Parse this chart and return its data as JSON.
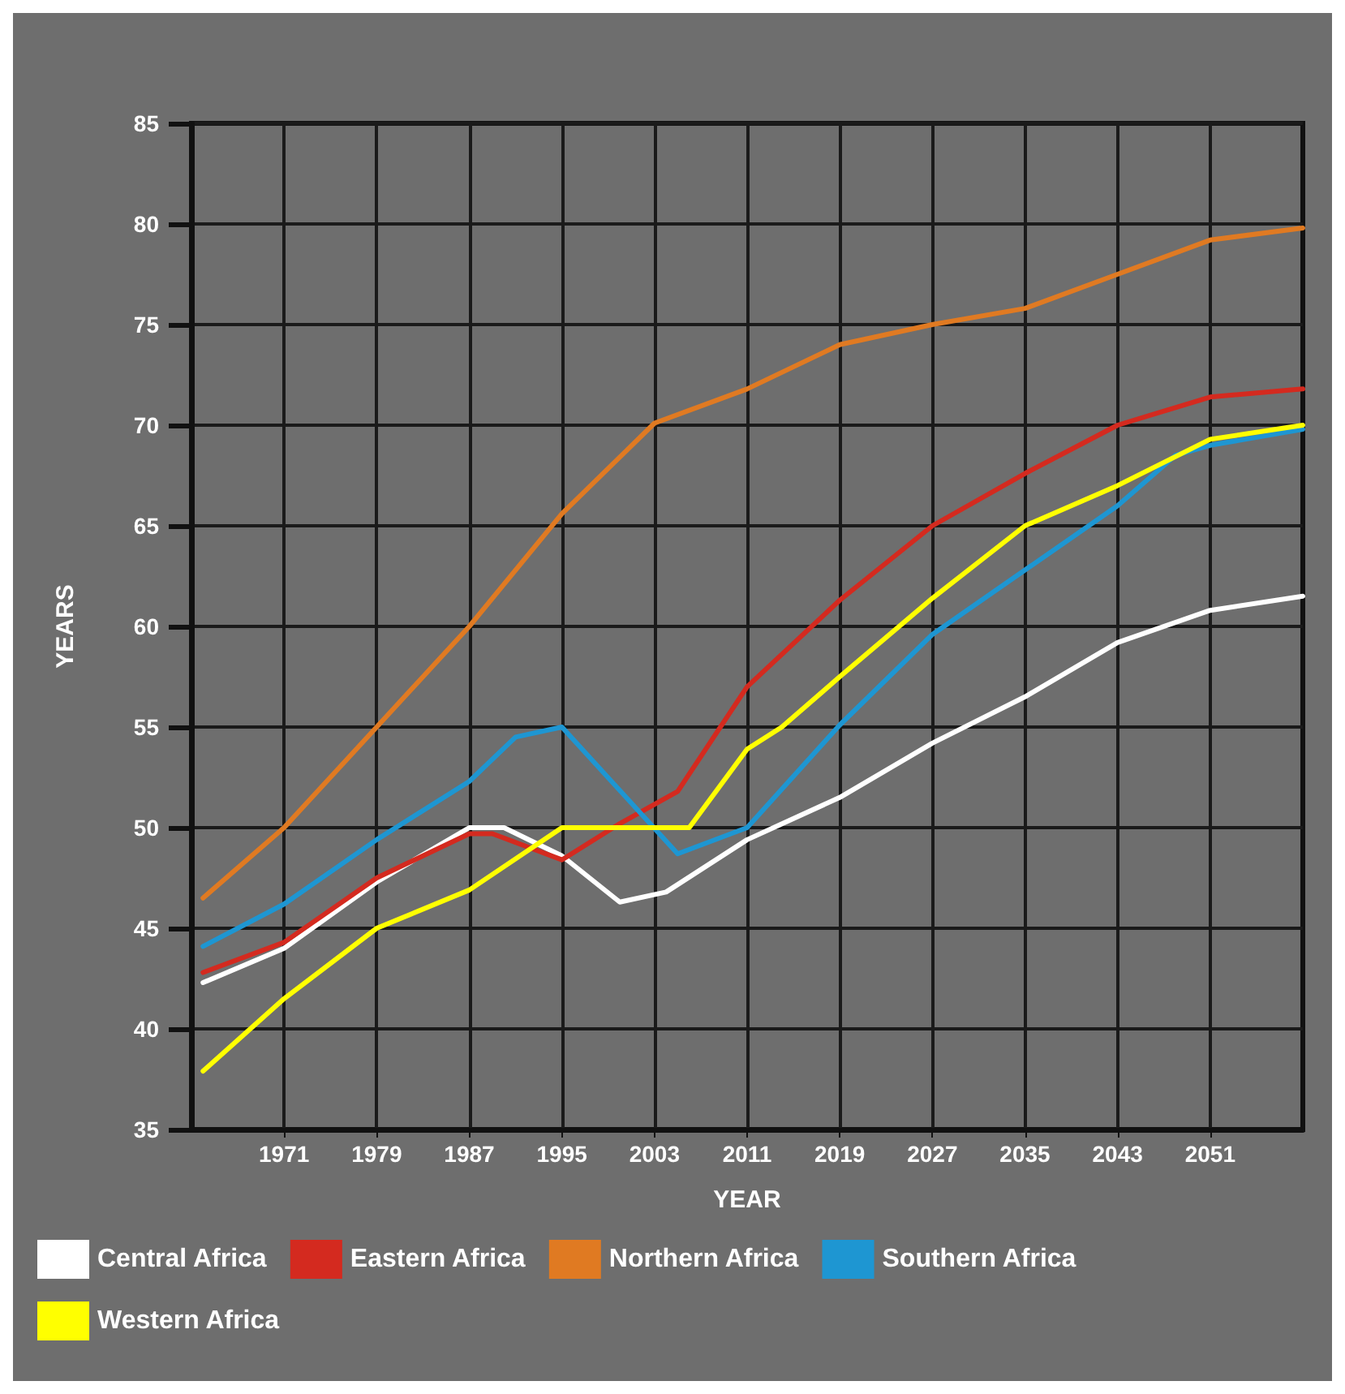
{
  "chart_data": {
    "type": "line",
    "xlabel": "YEAR",
    "ylabel": "YEARS",
    "xlim": [
      1963,
      2059
    ],
    "xticks": [
      1971,
      1979,
      1987,
      1995,
      2003,
      2011,
      2019,
      2027,
      2035,
      2043,
      2051
    ],
    "ylim": [
      35,
      85
    ],
    "yticks": [
      35,
      40,
      45,
      50,
      55,
      60,
      65,
      70,
      75,
      80,
      85
    ],
    "grid": true,
    "legend": "bottom",
    "marker": "none",
    "line_style": "solid",
    "series": [
      {
        "name": "Central Africa",
        "color": "#ffffff",
        "x": [
          1964,
          1971,
          1979,
          1987,
          1990,
          1995,
          2000,
          2004,
          2011,
          2019,
          2027,
          2035,
          2043,
          2051,
          2059
        ],
        "values": [
          42.3,
          44.0,
          47.3,
          50.0,
          50.0,
          48.6,
          46.3,
          46.8,
          49.4,
          51.5,
          54.2,
          56.5,
          59.2,
          60.8,
          61.5
        ]
      },
      {
        "name": "Eastern Africa",
        "color": "#d42a1f",
        "x": [
          1964,
          1971,
          1979,
          1987,
          1989,
          1995,
          2000,
          2005,
          2011,
          2019,
          2027,
          2035,
          2043,
          2051,
          2059
        ],
        "values": [
          42.8,
          44.3,
          47.5,
          49.7,
          49.7,
          48.4,
          50.2,
          51.8,
          57.0,
          61.3,
          65.0,
          67.6,
          70.0,
          71.4,
          71.8
        ]
      },
      {
        "name": "Northern Africa",
        "color": "#e07a22",
        "x": [
          1964,
          1971,
          1979,
          1987,
          1995,
          2003,
          2011,
          2019,
          2027,
          2035,
          2043,
          2051,
          2059
        ],
        "values": [
          46.5,
          50.0,
          55.0,
          60.0,
          65.6,
          70.1,
          71.8,
          74.0,
          75.0,
          75.8,
          77.5,
          79.2,
          79.8
        ]
      },
      {
        "name": "Southern Africa",
        "color": "#1e96d2",
        "x": [
          1964,
          1971,
          1979,
          1987,
          1991,
          1995,
          2005,
          2011,
          2019,
          2027,
          2035,
          2043,
          2048,
          2051,
          2059
        ],
        "values": [
          44.1,
          46.2,
          49.4,
          52.3,
          54.5,
          55.0,
          48.7,
          50.0,
          55.1,
          59.6,
          62.8,
          66.0,
          68.5,
          69.0,
          69.8
        ]
      },
      {
        "name": "Western Africa",
        "color": "#ffff00",
        "x": [
          1964,
          1971,
          1979,
          1987,
          1995,
          2006,
          2011,
          2014,
          2019,
          2027,
          2035,
          2043,
          2051,
          2059
        ],
        "values": [
          37.9,
          41.5,
          45.0,
          46.9,
          50.0,
          50.0,
          53.9,
          55.0,
          57.5,
          61.4,
          65.0,
          67.0,
          69.3,
          70.0
        ]
      }
    ]
  }
}
